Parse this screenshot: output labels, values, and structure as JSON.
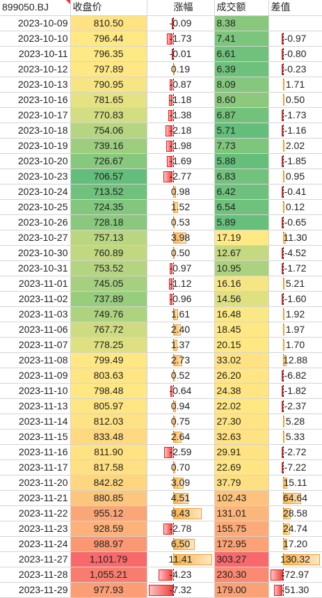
{
  "header": {
    "id": "899050.BJ",
    "close": "收盘价",
    "change": "涨幅",
    "volume": "成交额",
    "diff": "差值"
  },
  "colors": {
    "green": "#63be7b",
    "yellow": "#ffe984",
    "red": "#f8696b",
    "bar_pos": "#f7b24b",
    "bar_neg": "#f24040"
  },
  "rows": [
    {
      "date": "2023-10-09",
      "close": "810.50",
      "close_v": 810.5,
      "chg": "-0.09",
      "chg_v": -0.09,
      "vol": "8.38",
      "vol_v": 8.38,
      "diff": "",
      "diff_v": 0
    },
    {
      "date": "2023-10-10",
      "close": "796.44",
      "close_v": 796.44,
      "chg": "-1.73",
      "chg_v": -1.73,
      "vol": "7.41",
      "vol_v": 7.41,
      "diff": "-0.97",
      "diff_v": -0.97
    },
    {
      "date": "2023-10-11",
      "close": "796.35",
      "close_v": 796.35,
      "chg": "-0.01",
      "chg_v": -0.01,
      "vol": "6.61",
      "vol_v": 6.61,
      "diff": "-0.80",
      "diff_v": -0.8
    },
    {
      "date": "2023-10-12",
      "close": "797.89",
      "close_v": 797.89,
      "chg": "0.19",
      "chg_v": 0.19,
      "vol": "6.39",
      "vol_v": 6.39,
      "diff": "-0.23",
      "diff_v": -0.23
    },
    {
      "date": "2023-10-13",
      "close": "790.95",
      "close_v": 790.95,
      "chg": "-0.87",
      "chg_v": -0.87,
      "vol": "8.09",
      "vol_v": 8.09,
      "diff": "1.71",
      "diff_v": 1.71
    },
    {
      "date": "2023-10-16",
      "close": "781.65",
      "close_v": 781.65,
      "chg": "-1.18",
      "chg_v": -1.18,
      "vol": "8.60",
      "vol_v": 8.6,
      "diff": "0.50",
      "diff_v": 0.5
    },
    {
      "date": "2023-10-17",
      "close": "770.83",
      "close_v": 770.83,
      "chg": "-1.38",
      "chg_v": -1.38,
      "vol": "6.87",
      "vol_v": 6.87,
      "diff": "-1.73",
      "diff_v": -1.73
    },
    {
      "date": "2023-10-18",
      "close": "754.06",
      "close_v": 754.06,
      "chg": "-2.18",
      "chg_v": -2.18,
      "vol": "5.71",
      "vol_v": 5.71,
      "diff": "-1.16",
      "diff_v": -1.16
    },
    {
      "date": "2023-10-19",
      "close": "739.16",
      "close_v": 739.16,
      "chg": "-1.98",
      "chg_v": -1.98,
      "vol": "7.73",
      "vol_v": 7.73,
      "diff": "2.02",
      "diff_v": 2.02
    },
    {
      "date": "2023-10-20",
      "close": "726.67",
      "close_v": 726.67,
      "chg": "-1.69",
      "chg_v": -1.69,
      "vol": "5.88",
      "vol_v": 5.88,
      "diff": "-1.85",
      "diff_v": -1.85
    },
    {
      "date": "2023-10-23",
      "close": "706.57",
      "close_v": 706.57,
      "chg": "-2.77",
      "chg_v": -2.77,
      "vol": "6.83",
      "vol_v": 6.83,
      "diff": "0.95",
      "diff_v": 0.95
    },
    {
      "date": "2023-10-24",
      "close": "713.52",
      "close_v": 713.52,
      "chg": "0.98",
      "chg_v": 0.98,
      "vol": "6.42",
      "vol_v": 6.42,
      "diff": "-0.41",
      "diff_v": -0.41
    },
    {
      "date": "2023-10-25",
      "close": "724.35",
      "close_v": 724.35,
      "chg": "1.52",
      "chg_v": 1.52,
      "vol": "6.54",
      "vol_v": 6.54,
      "diff": "0.12",
      "diff_v": 0.12
    },
    {
      "date": "2023-10-26",
      "close": "728.18",
      "close_v": 728.18,
      "chg": "0.53",
      "chg_v": 0.53,
      "vol": "5.89",
      "vol_v": 5.89,
      "diff": "-0.65",
      "diff_v": -0.65
    },
    {
      "date": "2023-10-27",
      "close": "757.13",
      "close_v": 757.13,
      "chg": "3.98",
      "chg_v": 3.98,
      "vol": "17.19",
      "vol_v": 17.19,
      "diff": "11.30",
      "diff_v": 11.3
    },
    {
      "date": "2023-10-30",
      "close": "760.89",
      "close_v": 760.89,
      "chg": "0.50",
      "chg_v": 0.5,
      "vol": "12.67",
      "vol_v": 12.67,
      "diff": "-4.52",
      "diff_v": -4.52
    },
    {
      "date": "2023-10-31",
      "close": "753.52",
      "close_v": 753.52,
      "chg": "-0.97",
      "chg_v": -0.97,
      "vol": "10.95",
      "vol_v": 10.95,
      "diff": "-1.72",
      "diff_v": -1.72
    },
    {
      "date": "2023-11-01",
      "close": "745.05",
      "close_v": 745.05,
      "chg": "-1.12",
      "chg_v": -1.12,
      "vol": "16.16",
      "vol_v": 16.16,
      "diff": "5.21",
      "diff_v": 5.21
    },
    {
      "date": "2023-11-02",
      "close": "737.89",
      "close_v": 737.89,
      "chg": "-0.96",
      "chg_v": -0.96,
      "vol": "14.56",
      "vol_v": 14.56,
      "diff": "-1.60",
      "diff_v": -1.6
    },
    {
      "date": "2023-11-03",
      "close": "749.76",
      "close_v": 749.76,
      "chg": "1.61",
      "chg_v": 1.61,
      "vol": "16.48",
      "vol_v": 16.48,
      "diff": "1.92",
      "diff_v": 1.92
    },
    {
      "date": "2023-11-06",
      "close": "767.72",
      "close_v": 767.72,
      "chg": "2.40",
      "chg_v": 2.4,
      "vol": "18.45",
      "vol_v": 18.45,
      "diff": "1.97",
      "diff_v": 1.97
    },
    {
      "date": "2023-11-07",
      "close": "778.25",
      "close_v": 778.25,
      "chg": "1.37",
      "chg_v": 1.37,
      "vol": "20.15",
      "vol_v": 20.15,
      "diff": "1.70",
      "diff_v": 1.7
    },
    {
      "date": "2023-11-08",
      "close": "799.49",
      "close_v": 799.49,
      "chg": "2.73",
      "chg_v": 2.73,
      "vol": "33.02",
      "vol_v": 33.02,
      "diff": "12.88",
      "diff_v": 12.88
    },
    {
      "date": "2023-11-09",
      "close": "803.63",
      "close_v": 803.63,
      "chg": "0.52",
      "chg_v": 0.52,
      "vol": "26.20",
      "vol_v": 26.2,
      "diff": "-6.82",
      "diff_v": -6.82
    },
    {
      "date": "2023-11-10",
      "close": "798.48",
      "close_v": 798.48,
      "chg": "-0.64",
      "chg_v": -0.64,
      "vol": "24.38",
      "vol_v": 24.38,
      "diff": "-1.82",
      "diff_v": -1.82
    },
    {
      "date": "2023-11-13",
      "close": "805.97",
      "close_v": 805.97,
      "chg": "0.94",
      "chg_v": 0.94,
      "vol": "22.02",
      "vol_v": 22.02,
      "diff": "-2.37",
      "diff_v": -2.37
    },
    {
      "date": "2023-11-14",
      "close": "812.03",
      "close_v": 812.03,
      "chg": "0.75",
      "chg_v": 0.75,
      "vol": "27.30",
      "vol_v": 27.3,
      "diff": "5.28",
      "diff_v": 5.28
    },
    {
      "date": "2023-11-15",
      "close": "833.48",
      "close_v": 833.48,
      "chg": "2.64",
      "chg_v": 2.64,
      "vol": "32.63",
      "vol_v": 32.63,
      "diff": "5.33",
      "diff_v": 5.33
    },
    {
      "date": "2023-11-16",
      "close": "811.90",
      "close_v": 811.9,
      "chg": "-2.59",
      "chg_v": -2.59,
      "vol": "29.91",
      "vol_v": 29.91,
      "diff": "-2.72",
      "diff_v": -2.72
    },
    {
      "date": "2023-11-17",
      "close": "817.58",
      "close_v": 817.58,
      "chg": "0.70",
      "chg_v": 0.7,
      "vol": "22.69",
      "vol_v": 22.69,
      "diff": "-7.22",
      "diff_v": -7.22
    },
    {
      "date": "2023-11-20",
      "close": "842.82",
      "close_v": 842.82,
      "chg": "3.09",
      "chg_v": 3.09,
      "vol": "37.79",
      "vol_v": 37.79,
      "diff": "15.11",
      "diff_v": 15.11
    },
    {
      "date": "2023-11-21",
      "close": "880.85",
      "close_v": 880.85,
      "chg": "4.51",
      "chg_v": 4.51,
      "vol": "102.43",
      "vol_v": 102.43,
      "diff": "64.64",
      "diff_v": 64.64
    },
    {
      "date": "2023-11-22",
      "close": "955.12",
      "close_v": 955.12,
      "chg": "8.43",
      "chg_v": 8.43,
      "vol": "131.01",
      "vol_v": 131.01,
      "diff": "28.58",
      "diff_v": 28.58
    },
    {
      "date": "2023-11-23",
      "close": "928.59",
      "close_v": 928.59,
      "chg": "-2.78",
      "chg_v": -2.78,
      "vol": "155.75",
      "vol_v": 155.75,
      "diff": "24.74",
      "diff_v": 24.74
    },
    {
      "date": "2023-11-24",
      "close": "988.97",
      "close_v": 988.97,
      "chg": "6.50",
      "chg_v": 6.5,
      "vol": "172.95",
      "vol_v": 172.95,
      "diff": "17.20",
      "diff_v": 17.2
    },
    {
      "date": "2023-11-27",
      "close": "1,101.79",
      "close_v": 1101.79,
      "chg": "11.41",
      "chg_v": 11.41,
      "vol": "303.27",
      "vol_v": 303.27,
      "diff": "130.32",
      "diff_v": 130.32
    },
    {
      "date": "2023-11-28",
      "close": "1,055.21",
      "close_v": 1055.21,
      "chg": "-4.23",
      "chg_v": -4.23,
      "vol": "230.30",
      "vol_v": 230.3,
      "diff": "-72.97",
      "diff_v": -72.97
    },
    {
      "date": "2023-11-29",
      "close": "977.93",
      "close_v": 977.93,
      "chg": "-7.32",
      "chg_v": -7.32,
      "vol": "179.00",
      "vol_v": 179.0,
      "diff": "-51.30",
      "diff_v": -51.3
    }
  ]
}
